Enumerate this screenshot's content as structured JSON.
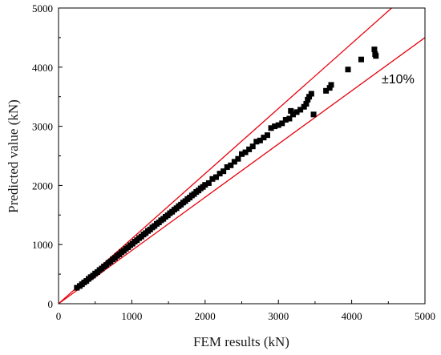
{
  "chart_data": {
    "type": "scatter",
    "title": "",
    "xlabel": "FEM results (kN)",
    "ylabel": "Predicted value (kN)",
    "xlim": [
      0,
      5000
    ],
    "ylim": [
      0,
      5000
    ],
    "x_ticks": [
      0,
      1000,
      2000,
      3000,
      4000,
      5000
    ],
    "y_ticks": [
      0,
      1000,
      2000,
      3000,
      4000,
      5000
    ],
    "grid": false,
    "annotation": "±10%",
    "bound_lines": [
      {
        "slope": 1.1,
        "color": "#e8000b"
      },
      {
        "slope": 0.9,
        "color": "#e8000b"
      }
    ],
    "marker_color": "#000000",
    "points": {
      "x": [
        250,
        290,
        320,
        350,
        380,
        410,
        440,
        470,
        500,
        530,
        560,
        590,
        620,
        650,
        680,
        710,
        740,
        770,
        800,
        830,
        860,
        890,
        920,
        950,
        980,
        1010,
        1040,
        1070,
        1100,
        1130,
        1160,
        1190,
        1220,
        1250,
        1280,
        1310,
        1340,
        1370,
        1400,
        1430,
        1460,
        1490,
        1520,
        1550,
        1580,
        1610,
        1640,
        1670,
        1700,
        1730,
        1760,
        1790,
        1820,
        1850,
        1880,
        1910,
        1940,
        1970,
        2000,
        2050,
        2100,
        2150,
        2200,
        2250,
        2300,
        2350,
        2400,
        2450,
        2500,
        2550,
        2600,
        2650,
        2700,
        2750,
        2800,
        2850,
        2900,
        2950,
        3000,
        3050,
        3100,
        3150,
        3170,
        3200,
        3250,
        3300,
        3350,
        3380,
        3400,
        3420,
        3450,
        3480,
        3650,
        3700,
        3720,
        3950,
        4130,
        4310,
        4320,
        4330
      ],
      "y": [
        270,
        300,
        330,
        360,
        385,
        420,
        450,
        475,
        510,
        535,
        570,
        595,
        630,
        655,
        690,
        715,
        750,
        775,
        810,
        835,
        870,
        895,
        930,
        955,
        990,
        1015,
        1050,
        1075,
        1110,
        1135,
        1170,
        1195,
        1230,
        1255,
        1290,
        1315,
        1350,
        1375,
        1410,
        1435,
        1470,
        1495,
        1530,
        1555,
        1590,
        1615,
        1650,
        1675,
        1710,
        1735,
        1770,
        1795,
        1830,
        1855,
        1890,
        1915,
        1950,
        1975,
        2010,
        2040,
        2110,
        2140,
        2200,
        2240,
        2310,
        2340,
        2400,
        2450,
        2530,
        2560,
        2610,
        2660,
        2740,
        2760,
        2810,
        2850,
        2970,
        3000,
        3020,
        3050,
        3110,
        3130,
        3260,
        3200,
        3240,
        3280,
        3330,
        3380,
        3450,
        3500,
        3550,
        3200,
        3600,
        3650,
        3700,
        3960,
        4130,
        4300,
        4220,
        4190
      ]
    }
  }
}
